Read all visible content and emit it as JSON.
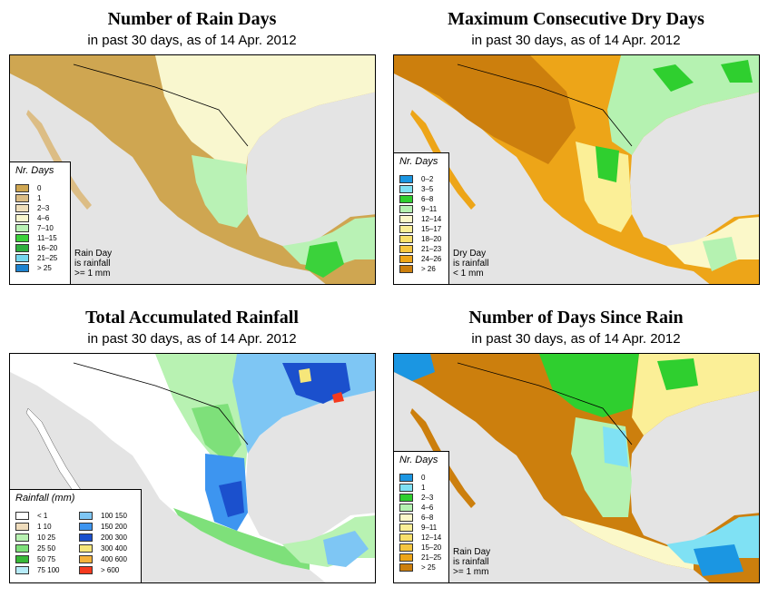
{
  "panels": [
    {
      "title": "Number of Rain Days",
      "subtitle": "in past 30 days, as of  14 Apr. 2012",
      "legend": {
        "title": "Nr. Days",
        "entries": [
          {
            "label": "0",
            "color": "#cfa651"
          },
          {
            "label": "1",
            "color": "#dcbd85"
          },
          {
            "label": "2–3",
            "color": "#f0dfbb"
          },
          {
            "label": "4–6",
            "color": "#f9f7cf"
          },
          {
            "label": "7–10",
            "color": "#b9f2b5"
          },
          {
            "label": "11–15",
            "color": "#3bd23b"
          },
          {
            "label": "16–20",
            "color": "#2faf3f"
          },
          {
            "label": "21–25",
            "color": "#75d6ef"
          },
          {
            "label": "> 25",
            "color": "#1d82cf"
          }
        ],
        "note": [
          "Rain Day",
          "is rainfall",
          ">= 1 mm"
        ]
      }
    },
    {
      "title": "Maximum Consecutive Dry Days",
      "subtitle": "in past 30 days, as of  14 Apr. 2012",
      "legend": {
        "title": "Nr. Days",
        "entries": [
          {
            "label": "0–2",
            "color": "#1b96e2"
          },
          {
            "label": "3–5",
            "color": "#7fe1f4"
          },
          {
            "label": "6–8",
            "color": "#2fcf2f"
          },
          {
            "label": "9–11",
            "color": "#b5f2b1"
          },
          {
            "label": "12–14",
            "color": "#fbf8c9"
          },
          {
            "label": "15–17",
            "color": "#fbef97"
          },
          {
            "label": "18–20",
            "color": "#f9e06b"
          },
          {
            "label": "21–23",
            "color": "#f5c640"
          },
          {
            "label": "24–26",
            "color": "#eda518"
          },
          {
            "label": "> 26",
            "color": "#cc7f0d"
          }
        ],
        "note": [
          "Dry Day",
          "is rainfall",
          "< 1 mm"
        ]
      }
    },
    {
      "title": "Total Accumulated Rainfall",
      "subtitle": "in past 30 days, as of  14 Apr. 2012",
      "legend": {
        "title": "Rainfall (mm)",
        "entries": [
          {
            "label": "< 1",
            "color": "#ffffff"
          },
          {
            "label": "1    10",
            "color": "#efdcbc"
          },
          {
            "label": "10    25",
            "color": "#b8f2b2"
          },
          {
            "label": "25    50",
            "color": "#7ee07a"
          },
          {
            "label": "50    75",
            "color": "#38b838"
          },
          {
            "label": "75  100",
            "color": "#b6ebf8"
          },
          {
            "label": "100  150",
            "color": "#7ec6f4"
          },
          {
            "label": "150  200",
            "color": "#3d95f0"
          },
          {
            "label": "200  300",
            "color": "#1b50cd"
          },
          {
            "label": "300  400",
            "color": "#f6e67a"
          },
          {
            "label": "400  600",
            "color": "#f5b23a"
          },
          {
            "label": "> 600",
            "color": "#f53a1e"
          }
        ]
      }
    },
    {
      "title": "Number of Days Since Rain",
      "subtitle": "in past 30 days, as of  14 Apr. 2012",
      "legend": {
        "title": "Nr. Days",
        "entries": [
          {
            "label": "0",
            "color": "#1b96e2"
          },
          {
            "label": "1",
            "color": "#7fe1f4"
          },
          {
            "label": "2–3",
            "color": "#2fcf2f"
          },
          {
            "label": "4–6",
            "color": "#b5f2b1"
          },
          {
            "label": "6–8",
            "color": "#fbf8c9"
          },
          {
            "label": "9–11",
            "color": "#fbef97"
          },
          {
            "label": "12–14",
            "color": "#f9e06b"
          },
          {
            "label": "15–20",
            "color": "#f5c640"
          },
          {
            "label": "21–25",
            "color": "#eda518"
          },
          {
            "label": "> 25",
            "color": "#cc7f0d"
          }
        ],
        "note": [
          "Rain Day",
          "is rainfall",
          ">= 1 mm"
        ]
      }
    }
  ]
}
